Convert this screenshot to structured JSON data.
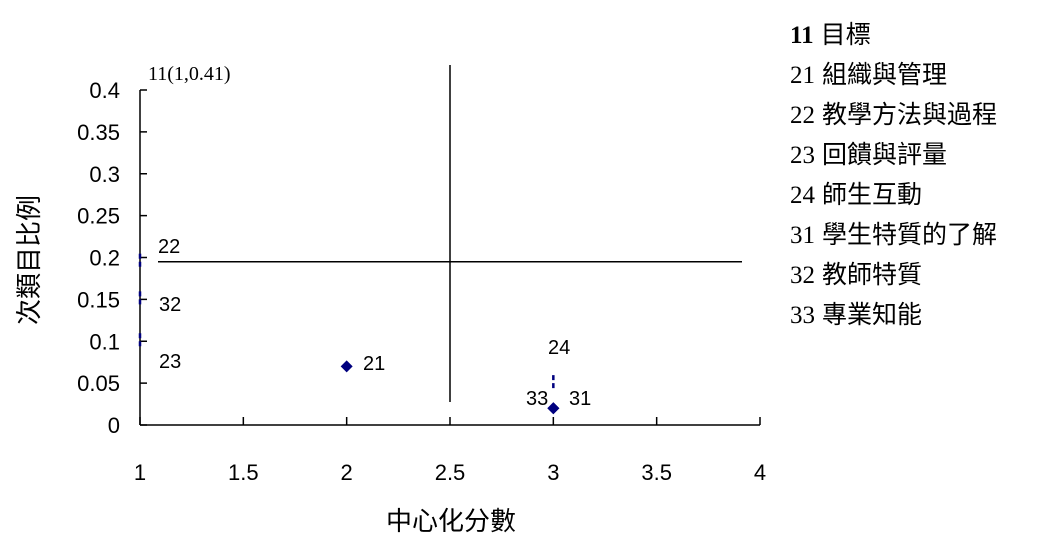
{
  "chart_data": {
    "type": "scatter",
    "xlabel": "中心化分數",
    "ylabel": "次類目比例",
    "xlim": [
      1,
      4
    ],
    "ylim": [
      0,
      0.4
    ],
    "x_ticks": [
      "1",
      "1.5",
      "2",
      "2.5",
      "3",
      "3.5",
      "4"
    ],
    "y_ticks": [
      "0",
      "0.05",
      "0.1",
      "0.15",
      "0.2",
      "0.25",
      "0.3",
      "0.35",
      "0.4"
    ],
    "reference_lines": {
      "x": 2.5,
      "y": 0.195
    },
    "marker_color": "#00007f",
    "points": [
      {
        "label": "11(1,0.41)",
        "x": 1,
        "y": 0.41
      },
      {
        "label": "22",
        "x": 1,
        "y": 0.195
      },
      {
        "label": "32",
        "x": 1,
        "y": 0.15
      },
      {
        "label": "23",
        "x": 1,
        "y": 0.1
      },
      {
        "label": "21",
        "x": 2,
        "y": 0.07
      },
      {
        "label": "24",
        "x": 3,
        "y": 0.05
      },
      {
        "label": "33",
        "x": 3,
        "y": 0.02
      },
      {
        "label": "31",
        "x": 3,
        "y": 0.02
      }
    ]
  },
  "legend": [
    {
      "code": "11",
      "name": "目標",
      "bold": true
    },
    {
      "code": "21",
      "name": "組織與管理"
    },
    {
      "code": "22",
      "name": "教學方法與過程"
    },
    {
      "code": "23",
      "name": "回饋與評量"
    },
    {
      "code": "24",
      "name": "師生互動"
    },
    {
      "code": "31",
      "name": "學生特質的了解"
    },
    {
      "code": "32",
      "name": "教師特質"
    },
    {
      "code": "33",
      "name": "專業知能"
    }
  ]
}
